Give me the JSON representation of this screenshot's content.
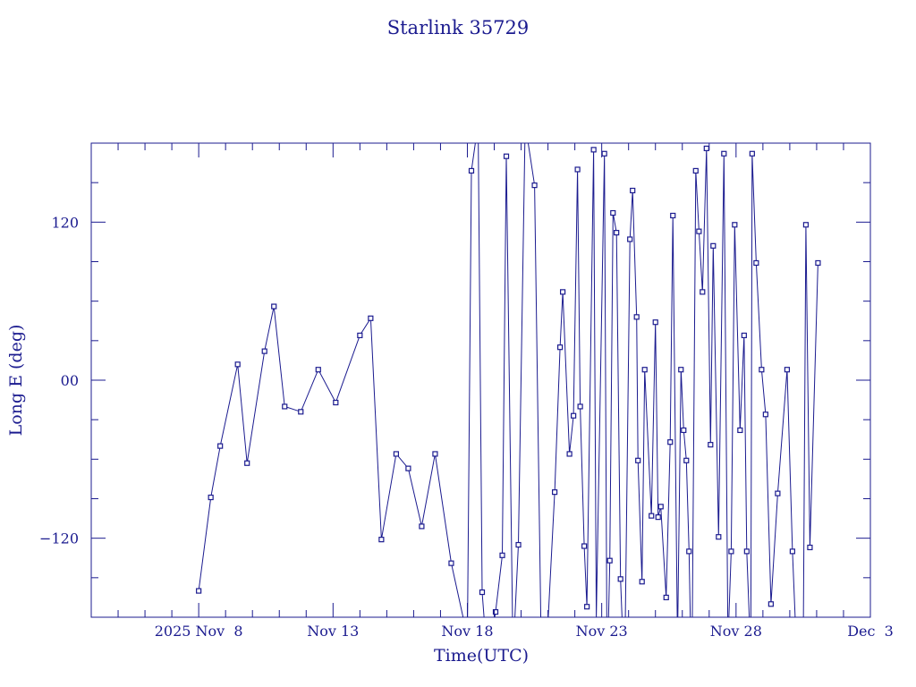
{
  "colors": {
    "ink": "#1b1b8f",
    "background": "#ffffff"
  },
  "chart_data": {
    "type": "line",
    "title": "Starlink 35729",
    "xlabel": "Time(UTC)",
    "ylabel": "Long E (deg)",
    "x_unit": "days since 2025 Nov 8 00:00 UTC",
    "xlim": [
      -4,
      25
    ],
    "ylim": [
      -180,
      180
    ],
    "x_ticks": [
      {
        "x": 0,
        "label": "2025 Nov  8"
      },
      {
        "x": 5,
        "label": "Nov 13"
      },
      {
        "x": 10,
        "label": "Nov 18"
      },
      {
        "x": 15,
        "label": "Nov 23"
      },
      {
        "x": 20,
        "label": "Nov 28"
      },
      {
        "x": 25,
        "label": "Dec  3"
      }
    ],
    "y_ticks": [
      {
        "y": -120,
        "label": "−120"
      },
      {
        "y": 0,
        "label": "00"
      },
      {
        "y": 120,
        "label": "120"
      }
    ],
    "grid": false,
    "markers": "small squares",
    "series": [
      {
        "name": "Starlink 35729",
        "x": [
          0.0,
          0.45,
          0.8,
          1.45,
          1.8,
          2.45,
          2.8,
          3.2,
          3.8,
          4.45,
          5.1,
          6.0,
          6.4,
          6.8,
          7.35,
          7.8,
          8.3,
          8.8,
          9.4,
          10.0,
          10.15,
          10.4,
          10.55,
          10.75,
          11.05,
          11.3,
          11.45,
          11.7,
          11.9,
          12.15,
          12.5,
          12.75,
          13.0,
          13.25,
          13.45,
          13.55,
          13.8,
          13.95,
          14.1,
          14.2,
          14.35,
          14.45,
          14.7,
          14.8,
          15.1,
          15.2,
          15.3,
          15.42,
          15.55,
          15.7,
          15.85,
          16.05,
          16.15,
          16.3,
          16.35,
          16.5,
          16.6,
          16.85,
          17.0,
          17.1,
          17.2,
          17.4,
          17.55,
          17.65,
          17.82,
          17.95,
          18.05,
          18.15,
          18.25,
          18.35,
          18.5,
          18.62,
          18.75,
          18.9,
          19.05,
          19.15,
          19.35,
          19.55,
          19.7,
          19.82,
          19.95,
          20.15,
          20.3,
          20.4,
          20.55,
          20.6,
          20.75,
          20.95,
          21.1,
          21.3,
          21.55,
          21.9,
          22.1,
          22.3,
          22.5,
          22.6,
          22.75,
          23.05
        ],
        "y": [
          -160,
          -89,
          -50,
          12,
          -63,
          22,
          56,
          -20,
          -24,
          8,
          -17,
          34,
          47,
          -121,
          -56,
          -67,
          -111,
          -56,
          -139,
          -195,
          159,
          195,
          -161,
          -215,
          -176,
          -133,
          170,
          -210,
          -125,
          195,
          148,
          -207,
          -184,
          -85,
          25,
          67,
          -56,
          -27,
          160,
          -20,
          -126,
          -172,
          175,
          -181,
          172,
          -230,
          -137,
          127,
          112,
          -151,
          -230,
          107,
          144,
          48,
          -61,
          -153,
          8,
          -103,
          44,
          -104,
          -96,
          -165,
          -47,
          125,
          -200,
          8,
          -38,
          -61,
          -130,
          -240,
          159,
          113,
          67,
          176,
          -49,
          102,
          -119,
          172,
          -200,
          -130,
          118,
          -38,
          34,
          -130,
          -210,
          172,
          89,
          8,
          -26,
          -170,
          -86,
          8,
          -130,
          -230,
          -208,
          118,
          -127,
          89
        ]
      }
    ]
  }
}
